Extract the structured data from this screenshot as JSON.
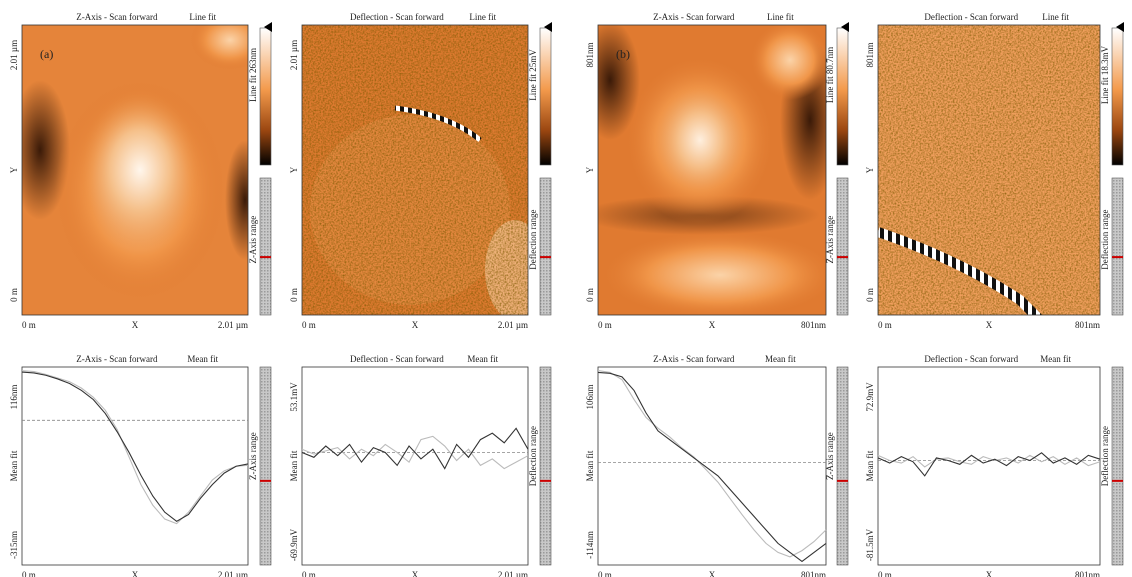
{
  "panels": [
    {
      "title": "Z-Axis - Scan forward",
      "mode": "Line fit",
      "y_max": "2.01 µm",
      "y_label": "Y",
      "y_min": "0 m",
      "x_min": "0 m",
      "x_label": "X",
      "x_max": "2.01 µm",
      "scale": "Line fit 263nm",
      "range": "Z-Axis range",
      "tag": "(a)"
    },
    {
      "title": "Deflection - Scan forward",
      "mode": "Line fit",
      "y_max": "2.01 µm",
      "y_label": "Y",
      "y_min": "0 m",
      "x_min": "0 m",
      "x_label": "X",
      "x_max": "2.01 µm",
      "scale": "Line fit 25mV",
      "range": "Deflection range"
    },
    {
      "title": "Z-Axis - Scan forward",
      "mode": "Line fit",
      "y_max": "801nm",
      "y_label": "Y",
      "y_min": "0 m",
      "x_min": "0 m",
      "x_label": "X",
      "x_max": "801nm",
      "scale": "Line fit 80.7nm",
      "range": "Z-Axis range",
      "tag": "(b)"
    },
    {
      "title": "Deflection - Scan forward",
      "mode": "Line fit",
      "y_max": "801nm",
      "y_label": "Y",
      "y_min": "0 m",
      "x_min": "0 m",
      "x_label": "X",
      "x_max": "801nm",
      "scale": "Line fit 18.3mV",
      "range": "Deflection range"
    }
  ],
  "profiles": [
    {
      "title": "Z-Axis - Scan forward",
      "mode": "Mean fit",
      "y_max": "116nm",
      "y_label": "Mean fit",
      "y_min": "-315nm",
      "ylim": [
        -315,
        116
      ],
      "x_min": "0 m",
      "x_label": "X",
      "x_max": "2.01 µm",
      "range": "Z-Axis range",
      "series": [
        {
          "color": "#333333",
          "values": [
            105,
            103,
            98,
            90,
            80,
            65,
            45,
            15,
            -25,
            -70,
            -120,
            -165,
            -200,
            -220,
            -205,
            -170,
            -140,
            -115,
            -100,
            -95
          ]
        },
        {
          "color": "#bbbbbb",
          "values": [
            108,
            106,
            100,
            92,
            84,
            70,
            50,
            22,
            -20,
            -80,
            -140,
            -185,
            -215,
            -225,
            -200,
            -165,
            -130,
            -110,
            -100,
            -98
          ]
        }
      ]
    },
    {
      "title": "Deflection - Scan forward",
      "mode": "Mean fit",
      "y_max": "53.1mV",
      "y_label": "Mean fit",
      "y_min": "-69.9mV",
      "ylim": [
        -69.9,
        53.1
      ],
      "x_min": "0 m",
      "x_label": "X",
      "x_max": "2.01 µm",
      "range": "Deflection range",
      "series": [
        {
          "color": "#333333",
          "values": [
            0,
            -3,
            4,
            -2,
            5,
            -6,
            3,
            0,
            -8,
            4,
            -4,
            2,
            -10,
            5,
            -3,
            8,
            12,
            6,
            15,
            2
          ]
        },
        {
          "color": "#bbbbbb",
          "values": [
            2,
            -1,
            1,
            3,
            -4,
            2,
            -2,
            5,
            0,
            -6,
            8,
            10,
            4,
            -5,
            2,
            -8,
            -4,
            -10,
            -6,
            -2
          ]
        }
      ]
    },
    {
      "title": "Z-Axis - Scan forward",
      "mode": "Mean fit",
      "y_max": "106nm",
      "y_label": "Mean fit",
      "y_min": "-114nm",
      "ylim": [
        -114,
        106
      ],
      "x_min": "0 m",
      "x_label": "X",
      "x_max": "801nm",
      "range": "Z-Axis range",
      "series": [
        {
          "color": "#333333",
          "values": [
            100,
            99,
            95,
            80,
            55,
            35,
            25,
            15,
            5,
            -5,
            -15,
            -30,
            -45,
            -60,
            -75,
            -90,
            -100,
            -110,
            -100,
            -90
          ]
        },
        {
          "color": "#bbbbbb",
          "values": [
            102,
            100,
            92,
            70,
            50,
            38,
            28,
            16,
            6,
            -8,
            -22,
            -40,
            -58,
            -75,
            -90,
            -100,
            -105,
            -98,
            -88,
            -75
          ]
        }
      ]
    },
    {
      "title": "Deflection - Scan forward",
      "mode": "Mean fit",
      "y_max": "72.9mV",
      "y_label": "Mean fit",
      "y_min": "-81.5mV",
      "ylim": [
        -81.5,
        72.9
      ],
      "x_min": "0 m",
      "x_label": "X",
      "x_max": "801nm",
      "range": "Deflection range",
      "series": [
        {
          "color": "#333333",
          "values": [
            2,
            -2,
            3,
            -1,
            -12,
            2,
            0,
            -3,
            4,
            -2,
            1,
            -4,
            3,
            0,
            6,
            -2,
            2,
            -3,
            4,
            1
          ]
        },
        {
          "color": "#bbbbbb",
          "values": [
            4,
            0,
            -2,
            3,
            -5,
            1,
            2,
            -1,
            -3,
            3,
            0,
            2,
            -2,
            4,
            -1,
            3,
            -3,
            2,
            -4,
            -1
          ]
        }
      ]
    }
  ]
}
